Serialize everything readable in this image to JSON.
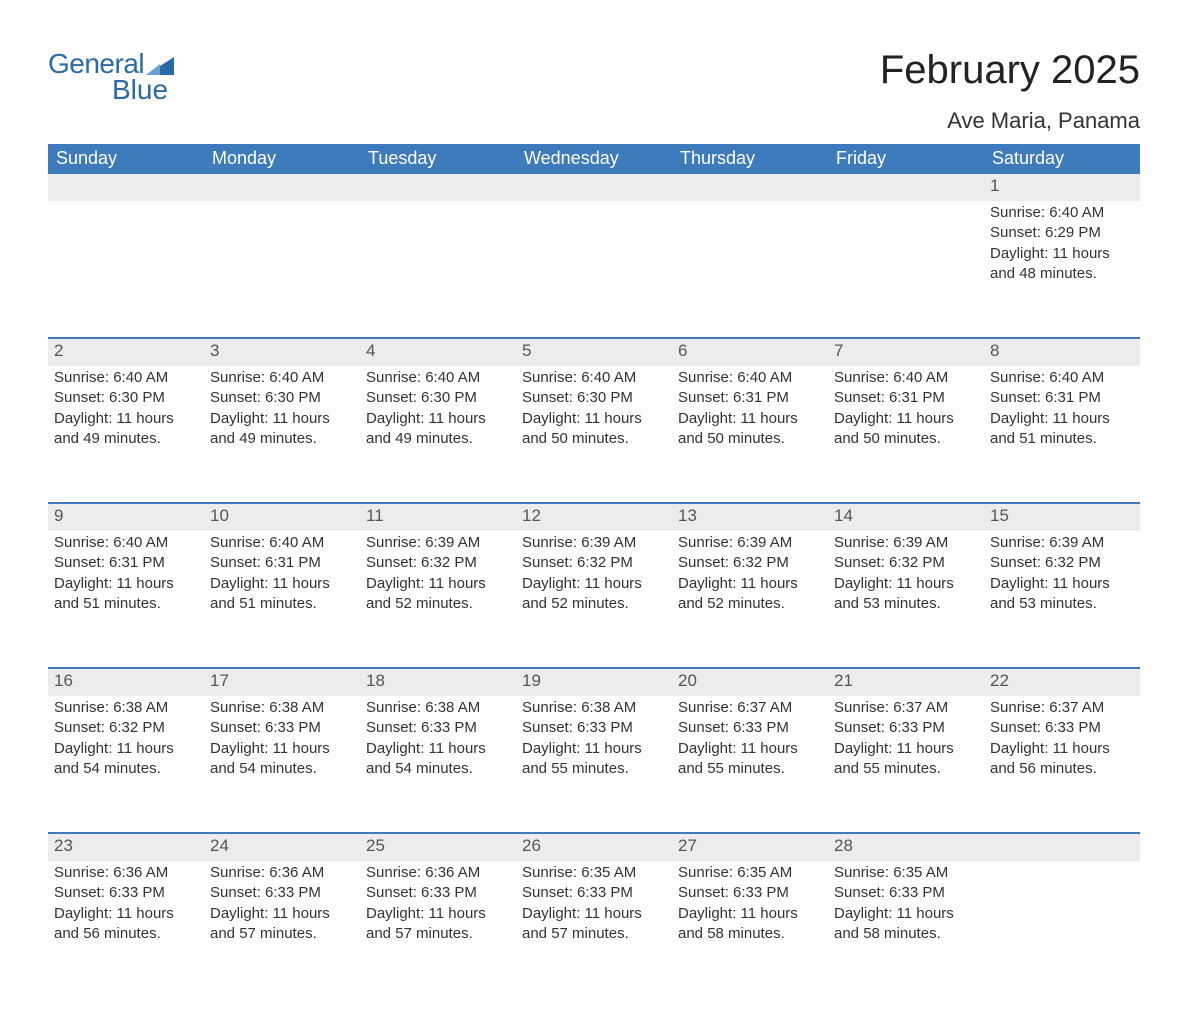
{
  "brand": {
    "name_part1": "General",
    "name_part2": "Blue",
    "logo_color": "#2a6aa8"
  },
  "header": {
    "title": "February 2025",
    "location": "Ave Maria, Panama"
  },
  "colors": {
    "header_bar": "#3d7bbd",
    "header_bar_text": "#ffffff",
    "week_divider": "#3d7bbd",
    "daynum_band": "#ececec",
    "background": "#ffffff",
    "text": "#333333"
  },
  "days_of_week": [
    "Sunday",
    "Monday",
    "Tuesday",
    "Wednesday",
    "Thursday",
    "Friday",
    "Saturday"
  ],
  "labels": {
    "sunrise": "Sunrise",
    "sunset": "Sunset",
    "daylight": "Daylight"
  },
  "weeks": [
    [
      null,
      null,
      null,
      null,
      null,
      null,
      {
        "n": "1",
        "sunrise": "6:40 AM",
        "sunset": "6:29 PM",
        "daylight": "11 hours and 48 minutes."
      }
    ],
    [
      {
        "n": "2",
        "sunrise": "6:40 AM",
        "sunset": "6:30 PM",
        "daylight": "11 hours and 49 minutes."
      },
      {
        "n": "3",
        "sunrise": "6:40 AM",
        "sunset": "6:30 PM",
        "daylight": "11 hours and 49 minutes."
      },
      {
        "n": "4",
        "sunrise": "6:40 AM",
        "sunset": "6:30 PM",
        "daylight": "11 hours and 49 minutes."
      },
      {
        "n": "5",
        "sunrise": "6:40 AM",
        "sunset": "6:30 PM",
        "daylight": "11 hours and 50 minutes."
      },
      {
        "n": "6",
        "sunrise": "6:40 AM",
        "sunset": "6:31 PM",
        "daylight": "11 hours and 50 minutes."
      },
      {
        "n": "7",
        "sunrise": "6:40 AM",
        "sunset": "6:31 PM",
        "daylight": "11 hours and 50 minutes."
      },
      {
        "n": "8",
        "sunrise": "6:40 AM",
        "sunset": "6:31 PM",
        "daylight": "11 hours and 51 minutes."
      }
    ],
    [
      {
        "n": "9",
        "sunrise": "6:40 AM",
        "sunset": "6:31 PM",
        "daylight": "11 hours and 51 minutes."
      },
      {
        "n": "10",
        "sunrise": "6:40 AM",
        "sunset": "6:31 PM",
        "daylight": "11 hours and 51 minutes."
      },
      {
        "n": "11",
        "sunrise": "6:39 AM",
        "sunset": "6:32 PM",
        "daylight": "11 hours and 52 minutes."
      },
      {
        "n": "12",
        "sunrise": "6:39 AM",
        "sunset": "6:32 PM",
        "daylight": "11 hours and 52 minutes."
      },
      {
        "n": "13",
        "sunrise": "6:39 AM",
        "sunset": "6:32 PM",
        "daylight": "11 hours and 52 minutes."
      },
      {
        "n": "14",
        "sunrise": "6:39 AM",
        "sunset": "6:32 PM",
        "daylight": "11 hours and 53 minutes."
      },
      {
        "n": "15",
        "sunrise": "6:39 AM",
        "sunset": "6:32 PM",
        "daylight": "11 hours and 53 minutes."
      }
    ],
    [
      {
        "n": "16",
        "sunrise": "6:38 AM",
        "sunset": "6:32 PM",
        "daylight": "11 hours and 54 minutes."
      },
      {
        "n": "17",
        "sunrise": "6:38 AM",
        "sunset": "6:33 PM",
        "daylight": "11 hours and 54 minutes."
      },
      {
        "n": "18",
        "sunrise": "6:38 AM",
        "sunset": "6:33 PM",
        "daylight": "11 hours and 54 minutes."
      },
      {
        "n": "19",
        "sunrise": "6:38 AM",
        "sunset": "6:33 PM",
        "daylight": "11 hours and 55 minutes."
      },
      {
        "n": "20",
        "sunrise": "6:37 AM",
        "sunset": "6:33 PM",
        "daylight": "11 hours and 55 minutes."
      },
      {
        "n": "21",
        "sunrise": "6:37 AM",
        "sunset": "6:33 PM",
        "daylight": "11 hours and 55 minutes."
      },
      {
        "n": "22",
        "sunrise": "6:37 AM",
        "sunset": "6:33 PM",
        "daylight": "11 hours and 56 minutes."
      }
    ],
    [
      {
        "n": "23",
        "sunrise": "6:36 AM",
        "sunset": "6:33 PM",
        "daylight": "11 hours and 56 minutes."
      },
      {
        "n": "24",
        "sunrise": "6:36 AM",
        "sunset": "6:33 PM",
        "daylight": "11 hours and 57 minutes."
      },
      {
        "n": "25",
        "sunrise": "6:36 AM",
        "sunset": "6:33 PM",
        "daylight": "11 hours and 57 minutes."
      },
      {
        "n": "26",
        "sunrise": "6:35 AM",
        "sunset": "6:33 PM",
        "daylight": "11 hours and 57 minutes."
      },
      {
        "n": "27",
        "sunrise": "6:35 AM",
        "sunset": "6:33 PM",
        "daylight": "11 hours and 58 minutes."
      },
      {
        "n": "28",
        "sunrise": "6:35 AM",
        "sunset": "6:33 PM",
        "daylight": "11 hours and 58 minutes."
      },
      null
    ]
  ]
}
